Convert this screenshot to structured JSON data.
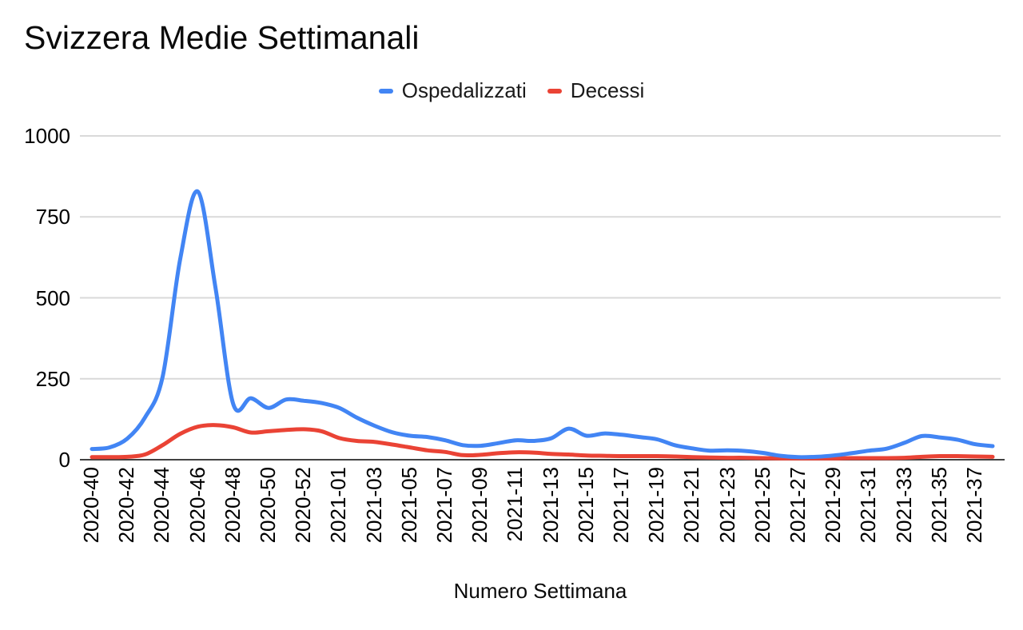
{
  "title": "Svizzera Medie Settimanali",
  "legend": {
    "position": "top",
    "items": [
      {
        "label": "Ospedalizzati",
        "color": "#4285F4"
      },
      {
        "label": "Decessi",
        "color": "#EA4335"
      }
    ]
  },
  "axes": {
    "y_tick_labels": [
      "0",
      "250",
      "500",
      "750",
      "1000"
    ],
    "x_axis_title": "Numero Settimana"
  },
  "chart_data": {
    "type": "line",
    "title": "Svizzera Medie Settimanali",
    "xlabel": "Numero Settimana",
    "ylabel": "",
    "ylim": [
      0,
      1000
    ],
    "yticks": [
      0,
      250,
      500,
      750,
      1000
    ],
    "grid": true,
    "smooth": true,
    "legend_position": "top",
    "x_tick_every": 2,
    "grid_color": "#d9d9d9",
    "axis_line_color": "#424242",
    "categories": [
      "2020-40",
      "2020-41",
      "2020-42",
      "2020-43",
      "2020-44",
      "2020-45",
      "2020-46",
      "2020-47",
      "2020-48",
      "2020-49",
      "2020-50",
      "2020-51",
      "2020-52",
      "2020-53",
      "2021-01",
      "2021-02",
      "2021-03",
      "2021-04",
      "2021-05",
      "2021-06",
      "2021-07",
      "2021-08",
      "2021-09",
      "2021-10",
      "2021-11",
      "2021-12",
      "2021-13",
      "2021-14",
      "2021-15",
      "2021-16",
      "2021-17",
      "2021-18",
      "2021-19",
      "2021-20",
      "2021-21",
      "2021-22",
      "2021-23",
      "2021-24",
      "2021-25",
      "2021-26",
      "2021-27",
      "2021-28",
      "2021-29",
      "2021-30",
      "2021-31",
      "2021-32",
      "2021-33",
      "2021-34",
      "2021-35",
      "2021-36",
      "2021-37",
      "2021-38"
    ],
    "series": [
      {
        "name": "Ospedalizzati",
        "color": "#4285F4",
        "values": [
          33,
          38,
          65,
          130,
          255,
          620,
          828,
          530,
          172,
          190,
          160,
          186,
          182,
          175,
          160,
          130,
          105,
          85,
          74,
          70,
          60,
          45,
          43,
          51,
          60,
          58,
          66,
          96,
          74,
          81,
          77,
          70,
          63,
          45,
          35,
          28,
          29,
          27,
          21,
          12,
          8,
          9,
          13,
          20,
          28,
          34,
          52,
          73,
          69,
          62,
          48,
          42
        ]
      },
      {
        "name": "Decessi",
        "color": "#EA4335",
        "values": [
          8,
          8,
          9,
          16,
          45,
          80,
          102,
          107,
          100,
          84,
          88,
          92,
          94,
          88,
          67,
          58,
          55,
          47,
          38,
          29,
          24,
          14,
          15,
          20,
          23,
          22,
          18,
          16,
          13,
          12,
          11,
          11,
          11,
          10,
          8,
          7,
          6,
          6,
          5,
          4,
          4,
          4,
          4,
          5,
          5,
          5,
          6,
          9,
          11,
          11,
          10,
          9
        ]
      }
    ]
  }
}
